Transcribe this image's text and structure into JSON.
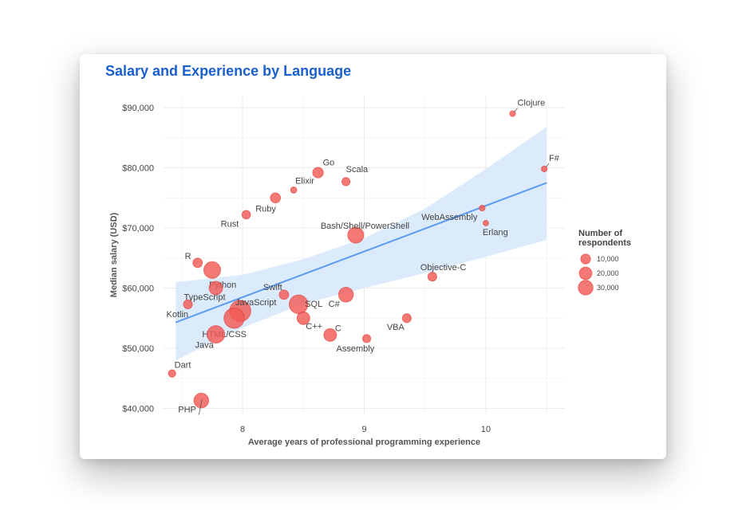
{
  "chart_data": {
    "type": "scatter",
    "title": "Salary and Experience by Language",
    "xlabel": "Average years of professional programming experience",
    "ylabel": "Median salary (USD)",
    "xlim": [
      7.35,
      10.65
    ],
    "ylim": [
      39000,
      92000
    ],
    "x_ticks": [
      8,
      9,
      10
    ],
    "x_tick_labels": [
      "8",
      "9",
      "10"
    ],
    "y_ticks": [
      40000,
      50000,
      60000,
      70000,
      80000,
      90000
    ],
    "y_tick_labels": [
      "$40,000",
      "$50,000",
      "$60,000",
      "$70,000",
      "$80,000",
      "$90,000"
    ],
    "grid": true,
    "point_color": "#f25a55",
    "trend": {
      "x": [
        7.45,
        10.5
      ],
      "y": [
        54300,
        77500
      ],
      "color": "#5b9bf0",
      "band_color": "#d6e7fb",
      "band_x": [
        7.45,
        8.0,
        8.5,
        9.0,
        9.5,
        10.0,
        10.5
      ],
      "band_upper": [
        61000,
        62200,
        64800,
        68300,
        73200,
        79800,
        86800
      ],
      "band_lower": [
        48000,
        53400,
        57400,
        60000,
        62500,
        65200,
        68000
      ]
    },
    "legend": {
      "title_lines": [
        "Number of",
        "respondents"
      ],
      "placement": "right",
      "entries": [
        {
          "label": "10,000",
          "value": 10000
        },
        {
          "label": "20,000",
          "value": 20000
        },
        {
          "label": "30,000",
          "value": 30000
        }
      ]
    },
    "points": [
      {
        "label": "Clojure",
        "x": 10.22,
        "y": 89000,
        "respondents": 600
      },
      {
        "label": "F#",
        "x": 10.48,
        "y": 79800,
        "respondents": 700
      },
      {
        "label": "Go",
        "x": 8.62,
        "y": 79200,
        "respondents": 7000
      },
      {
        "label": "Scala",
        "x": 8.85,
        "y": 77700,
        "respondents": 3000
      },
      {
        "label": "Elixir",
        "x": 8.42,
        "y": 76300,
        "respondents": 1000
      },
      {
        "label": "Ruby",
        "x": 8.27,
        "y": 75000,
        "respondents": 6000
      },
      {
        "label": "Rust",
        "x": 8.03,
        "y": 72200,
        "respondents": 3500
      },
      {
        "label": "WebAssembly",
        "x": 9.97,
        "y": 73300,
        "respondents": 700
      },
      {
        "label": "Erlang",
        "x": 10.0,
        "y": 70800,
        "respondents": 500
      },
      {
        "label": "Bash/Shell/PowerShell",
        "x": 8.93,
        "y": 68800,
        "respondents": 22000
      },
      {
        "label": "R",
        "x": 7.63,
        "y": 64200,
        "respondents": 5000
      },
      {
        "label": "Python",
        "x": 7.75,
        "y": 63000,
        "respondents": 25000
      },
      {
        "label": "Objective-C",
        "x": 9.56,
        "y": 61900,
        "respondents": 4000
      },
      {
        "label": "TypeScript",
        "x": 7.78,
        "y": 60000,
        "respondents": 14000
      },
      {
        "label": "Swift",
        "x": 8.34,
        "y": 58900,
        "respondents": 5000
      },
      {
        "label": "C#",
        "x": 8.85,
        "y": 58900,
        "respondents": 18000
      },
      {
        "label": "Kotlin",
        "x": 7.55,
        "y": 57300,
        "respondents": 4000
      },
      {
        "label": "SQL",
        "x": 8.46,
        "y": 57300,
        "respondents": 33000
      },
      {
        "label": "JavaScript",
        "x": 7.98,
        "y": 56200,
        "respondents": 45000
      },
      {
        "label": "HTML/CSS",
        "x": 7.93,
        "y": 55000,
        "respondents": 40000
      },
      {
        "label": "VBA",
        "x": 9.35,
        "y": 55000,
        "respondents": 4000
      },
      {
        "label": "C++",
        "x": 8.5,
        "y": 55000,
        "respondents": 12000
      },
      {
        "label": "Java",
        "x": 7.78,
        "y": 52300,
        "respondents": 28000
      },
      {
        "label": "C",
        "x": 8.72,
        "y": 52200,
        "respondents": 12000
      },
      {
        "label": "Assembly",
        "x": 9.02,
        "y": 51600,
        "respondents": 3000
      },
      {
        "label": "Dart",
        "x": 7.42,
        "y": 45800,
        "respondents": 2000
      },
      {
        "label": "PHP",
        "x": 7.66,
        "y": 41300,
        "respondents": 18000
      }
    ]
  }
}
